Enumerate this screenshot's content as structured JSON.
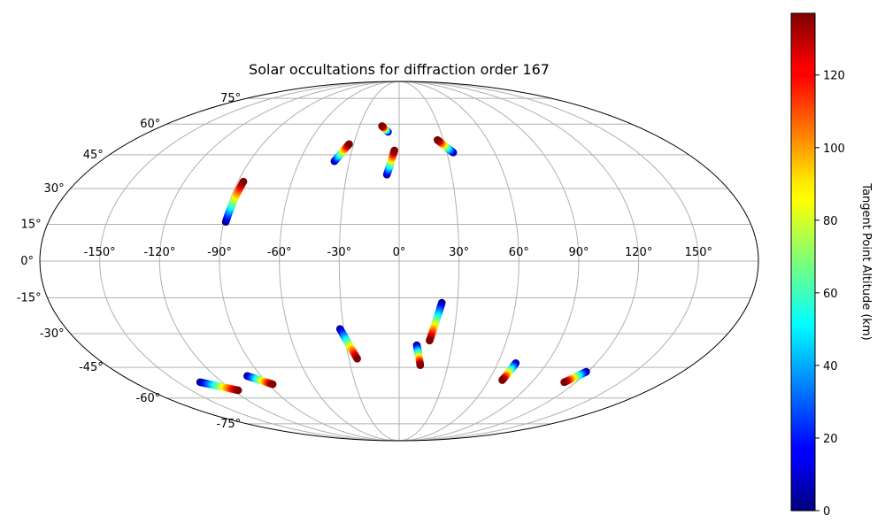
{
  "chart_data": {
    "type": "scatter",
    "projection": "mollweide",
    "title": "Solar occultations for diffraction order 167",
    "lon_ticks": [
      "-150°",
      "-120°",
      "-90°",
      "-60°",
      "-30°",
      "0°",
      "30°",
      "60°",
      "90°",
      "120°",
      "150°"
    ],
    "lat_ticks": [
      "75°",
      "60°",
      "45°",
      "30°",
      "15°",
      "0°",
      "-15°",
      "-30°",
      "-45°",
      "-60°",
      "-75°"
    ],
    "grid": true,
    "colorbar": {
      "label": "Tangent Point Altitude (km)",
      "min": 0,
      "max": 137,
      "ticks": [
        "0",
        "20",
        "40",
        "60",
        "80",
        "100",
        "120"
      ],
      "colormap": "jet"
    },
    "series": [
      {
        "lon_start": -89,
        "lat_start": 16,
        "lon_end": -87,
        "lat_end": 33,
        "alt_start": 0,
        "alt_end": 137
      },
      {
        "lon_start": -39,
        "lat_start": 42,
        "lon_end": -33,
        "lat_end": 50,
        "alt_start": 0,
        "alt_end": 137
      },
      {
        "lon_start": -7,
        "lat_start": 36,
        "lon_end": -3,
        "lat_end": 47,
        "alt_start": 0,
        "alt_end": 137
      },
      {
        "lon_start": -8,
        "lat_start": 56,
        "lon_end": -13,
        "lat_end": 59,
        "alt_start": 0,
        "alt_end": 137
      },
      {
        "lon_start": 34,
        "lat_start": 46,
        "lon_end": 26,
        "lat_end": 52,
        "alt_start": 0,
        "alt_end": 137
      },
      {
        "lon_start": 22,
        "lat_start": -17,
        "lon_end": 17,
        "lat_end": -33,
        "alt_start": 0,
        "alt_end": 137
      },
      {
        "lon_start": -32,
        "lat_start": -28,
        "lon_end": -25,
        "lat_end": -41,
        "alt_start": 0,
        "alt_end": 137
      },
      {
        "lon_start": 10,
        "lat_start": -35,
        "lon_end": 13,
        "lat_end": -44,
        "alt_start": 0,
        "alt_end": 137
      },
      {
        "lon_start": 71,
        "lat_start": -43,
        "lon_end": 69,
        "lat_end": -51,
        "alt_start": 0,
        "alt_end": 137
      },
      {
        "lon_start": 119,
        "lat_start": -47,
        "lon_end": 112,
        "lat_end": -52,
        "alt_start": 0,
        "alt_end": 137
      },
      {
        "lon_start": -99,
        "lat_start": -49,
        "lon_end": -87,
        "lat_end": -53,
        "alt_start": 0,
        "alt_end": 137
      },
      {
        "lon_start": -135,
        "lat_start": -52,
        "lon_end": -116,
        "lat_end": -56,
        "alt_start": 0,
        "alt_end": 137
      }
    ]
  }
}
